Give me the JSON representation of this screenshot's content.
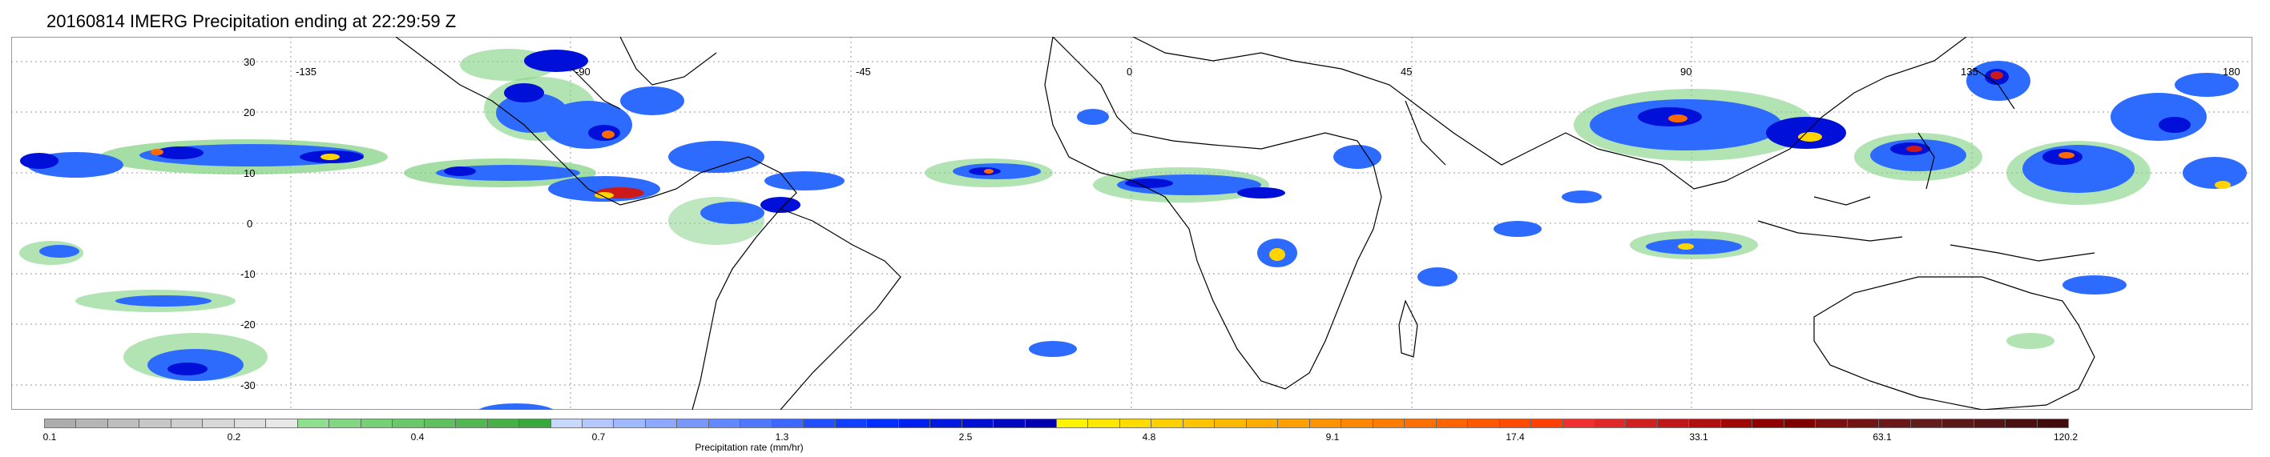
{
  "title": "20160814 IMERG Precipitation ending at 22:29:59 Z",
  "map": {
    "projection": "equirectangular",
    "lon_range": [
      -180,
      180
    ],
    "lat_range": [
      -37,
      37
    ],
    "longitude_labels": [
      "-135",
      "-90",
      "-45",
      "0",
      "45",
      "90",
      "135",
      "180"
    ],
    "latitude_labels": [
      "30",
      "20",
      "10",
      "0",
      "-10",
      "-20",
      "-30"
    ],
    "grid": "dotted",
    "coastline_color": "#000000"
  },
  "precip_field_colors": {
    "light": "#7fd07f",
    "moderate": "#2d6bff",
    "heavy": "#0010d8",
    "very_heavy": "#ffd400",
    "intense": "#ff6a00",
    "extreme": "#cc1a1a"
  },
  "colorbar": {
    "title": "Precipitation rate (mm/hr)",
    "tick_labels": [
      "0.1",
      "0.2",
      "0.4",
      "0.7",
      "1.3",
      "2.5",
      "4.8",
      "9.1",
      "17.4",
      "33.1",
      "63.1",
      "120.2"
    ],
    "colors": [
      "#adadad",
      "#b6b6b6",
      "#bebebe",
      "#c7c7c7",
      "#cfcfcf",
      "#d8d8d8",
      "#e0e0e0",
      "#e8e8e8",
      "#8ee08e",
      "#82d882",
      "#76d076",
      "#6ac86a",
      "#5ec05e",
      "#52b852",
      "#46b046",
      "#3aa83a",
      "#c8d8ff",
      "#b4c8ff",
      "#a0b8ff",
      "#8ca8ff",
      "#7898ff",
      "#6488ff",
      "#5078ff",
      "#3c68ff",
      "#2050ff",
      "#1040ff",
      "#0030ff",
      "#0020f0",
      "#0018e0",
      "#0010d0",
      "#0008c0",
      "#0000b0",
      "#fff400",
      "#ffe800",
      "#ffdc00",
      "#ffd000",
      "#ffc400",
      "#ffb800",
      "#ffac00",
      "#ffa000",
      "#ff9400",
      "#ff8800",
      "#ff7c00",
      "#ff7000",
      "#ff6400",
      "#ff5800",
      "#ff4c00",
      "#ff4000",
      "#f03030",
      "#e02828",
      "#d02020",
      "#c01818",
      "#b01010",
      "#a00808",
      "#900000",
      "#800000",
      "#7a1010",
      "#721414",
      "#6a1818",
      "#621c1c",
      "#5a1818",
      "#521414",
      "#4a1010",
      "#420c0c"
    ]
  }
}
